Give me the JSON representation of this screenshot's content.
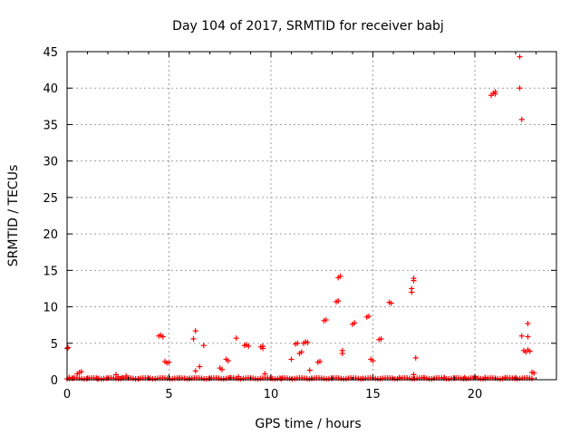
{
  "chart_data": {
    "type": "scatter",
    "title": "Day 104 of 2017, SRMTID for receiver babj",
    "xlabel": "GPS time / hours",
    "ylabel": "SRMTID / TECUs",
    "xlim": [
      0,
      24
    ],
    "ylim": [
      0,
      45
    ],
    "xticks": [
      0,
      5,
      10,
      15,
      20
    ],
    "yticks": [
      0,
      5,
      10,
      15,
      20,
      25,
      30,
      35,
      40,
      45
    ],
    "grid": true,
    "marker": "+",
    "color": "#ff0000",
    "series": [
      {
        "points": [
          [
            0.0,
            4.3
          ],
          [
            0.05,
            4.4
          ],
          [
            0.1,
            0.3
          ],
          [
            0.3,
            0.2
          ],
          [
            0.5,
            0.8
          ],
          [
            0.6,
            1.0
          ],
          [
            0.7,
            1.1
          ],
          [
            1.0,
            0.2
          ],
          [
            1.5,
            0.1
          ],
          [
            2.0,
            0.2
          ],
          [
            2.4,
            0.7
          ],
          [
            2.5,
            0.4
          ],
          [
            2.7,
            0.3
          ],
          [
            2.9,
            0.5
          ],
          [
            3.0,
            0.2
          ],
          [
            3.5,
            0.1
          ],
          [
            4.0,
            0.2
          ],
          [
            4.5,
            6.0
          ],
          [
            4.6,
            6.1
          ],
          [
            4.7,
            5.9
          ],
          [
            4.8,
            2.5
          ],
          [
            4.9,
            2.3
          ],
          [
            5.0,
            2.4
          ],
          [
            5.5,
            0.2
          ],
          [
            6.0,
            0.2
          ],
          [
            6.2,
            5.6
          ],
          [
            6.3,
            6.7
          ],
          [
            6.3,
            1.2
          ],
          [
            6.5,
            1.8
          ],
          [
            6.7,
            4.7
          ],
          [
            7.0,
            0.2
          ],
          [
            7.5,
            1.6
          ],
          [
            7.6,
            1.4
          ],
          [
            7.8,
            2.8
          ],
          [
            7.9,
            2.6
          ],
          [
            8.0,
            0.3
          ],
          [
            8.3,
            5.7
          ],
          [
            8.4,
            0.4
          ],
          [
            8.7,
            4.7
          ],
          [
            8.8,
            4.8
          ],
          [
            8.9,
            4.6
          ],
          [
            9.0,
            0.2
          ],
          [
            9.5,
            4.5
          ],
          [
            9.6,
            4.3
          ],
          [
            9.6,
            4.6
          ],
          [
            9.7,
            0.8
          ],
          [
            10.0,
            0.2
          ],
          [
            10.5,
            0.1
          ],
          [
            11.0,
            2.8
          ],
          [
            11.2,
            4.9
          ],
          [
            11.3,
            5.0
          ],
          [
            11.4,
            3.6
          ],
          [
            11.5,
            3.8
          ],
          [
            11.6,
            5.0
          ],
          [
            11.7,
            5.2
          ],
          [
            11.8,
            5.1
          ],
          [
            11.9,
            1.3
          ],
          [
            12.0,
            0.2
          ],
          [
            12.3,
            2.4
          ],
          [
            12.4,
            2.5
          ],
          [
            12.6,
            8.1
          ],
          [
            12.7,
            8.2
          ],
          [
            13.0,
            0.2
          ],
          [
            13.2,
            10.7
          ],
          [
            13.3,
            10.8
          ],
          [
            13.3,
            14.0
          ],
          [
            13.4,
            14.2
          ],
          [
            13.5,
            4.0
          ],
          [
            13.5,
            3.6
          ],
          [
            14.0,
            7.6
          ],
          [
            14.1,
            7.8
          ],
          [
            14.5,
            0.2
          ],
          [
            14.7,
            8.6
          ],
          [
            14.8,
            8.7
          ],
          [
            14.9,
            2.8
          ],
          [
            15.0,
            2.6
          ],
          [
            15.3,
            5.5
          ],
          [
            15.4,
            5.6
          ],
          [
            15.8,
            10.6
          ],
          [
            15.9,
            10.5
          ],
          [
            16.3,
            0.3
          ],
          [
            16.9,
            12.5
          ],
          [
            16.9,
            12.0
          ],
          [
            17.0,
            13.9
          ],
          [
            17.0,
            13.6
          ],
          [
            17.1,
            3.0
          ],
          [
            17.0,
            0.7
          ],
          [
            17.5,
            0.3
          ],
          [
            18.0,
            0.2
          ],
          [
            18.5,
            0.3
          ],
          [
            19.0,
            0.2
          ],
          [
            19.5,
            0.3
          ],
          [
            20.0,
            0.4
          ],
          [
            20.5,
            0.3
          ],
          [
            20.8,
            39.0
          ],
          [
            20.9,
            39.3
          ],
          [
            21.0,
            39.5
          ],
          [
            21.0,
            39.2
          ],
          [
            21.5,
            0.3
          ],
          [
            22.0,
            0.3
          ],
          [
            22.2,
            44.3
          ],
          [
            22.2,
            40.0
          ],
          [
            22.3,
            35.7
          ],
          [
            22.3,
            6.0
          ],
          [
            22.4,
            4.0
          ],
          [
            22.5,
            3.8
          ],
          [
            22.6,
            7.7
          ],
          [
            22.6,
            5.9
          ],
          [
            22.6,
            4.1
          ],
          [
            22.7,
            3.9
          ],
          [
            22.8,
            1.0
          ],
          [
            22.9,
            0.9
          ]
        ]
      }
    ]
  }
}
